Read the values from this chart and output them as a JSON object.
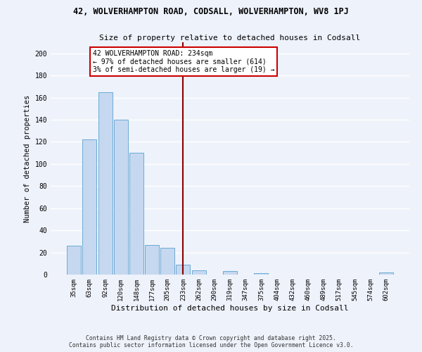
{
  "title1": "42, WOLVERHAMPTON ROAD, CODSALL, WOLVERHAMPTON, WV8 1PJ",
  "title2": "Size of property relative to detached houses in Codsall",
  "xlabel": "Distribution of detached houses by size in Codsall",
  "ylabel": "Number of detached properties",
  "bar_labels": [
    "35sqm",
    "63sqm",
    "92sqm",
    "120sqm",
    "148sqm",
    "177sqm",
    "205sqm",
    "233sqm",
    "262sqm",
    "290sqm",
    "319sqm",
    "347sqm",
    "375sqm",
    "404sqm",
    "432sqm",
    "460sqm",
    "489sqm",
    "517sqm",
    "545sqm",
    "574sqm",
    "602sqm"
  ],
  "bar_values": [
    26,
    122,
    165,
    140,
    110,
    27,
    24,
    9,
    4,
    0,
    3,
    0,
    1,
    0,
    0,
    0,
    0,
    0,
    0,
    0,
    2
  ],
  "bar_color": "#c5d8f0",
  "bar_edge_color": "#6aaad4",
  "vline_x_index": 7,
  "vline_color": "#8b0000",
  "annotation_line1": "42 WOLVERHAMPTON ROAD: 234sqm",
  "annotation_line2": "← 97% of detached houses are smaller (614)",
  "annotation_line3": "3% of semi-detached houses are larger (19) →",
  "footer_line1": "Contains HM Land Registry data © Crown copyright and database right 2025.",
  "footer_line2": "Contains public sector information licensed under the Open Government Licence v3.0.",
  "ylim": [
    0,
    210
  ],
  "background_color": "#eef2fb",
  "grid_color": "#ffffff"
}
